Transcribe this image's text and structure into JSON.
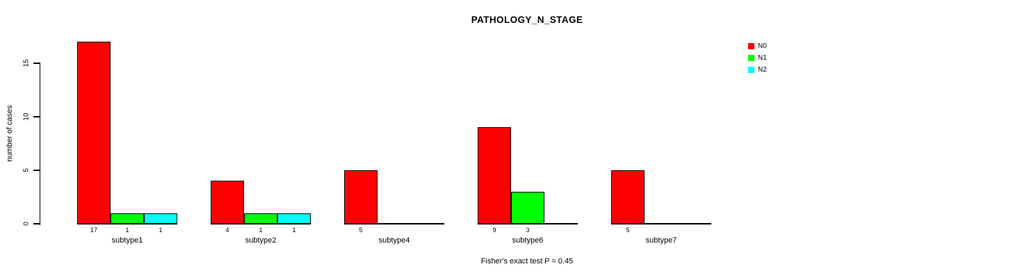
{
  "chart_data": {
    "type": "bar",
    "title": "PATHOLOGY_N_STAGE",
    "ylabel": "number of cases",
    "categories": [
      "subtype1",
      "subtype2",
      "subtype4",
      "subtype6",
      "subtype7"
    ],
    "series": [
      {
        "name": "N0",
        "color": "#ff0000",
        "values": [
          17,
          4,
          5,
          9,
          5
        ]
      },
      {
        "name": "N1",
        "color": "#00ff00",
        "values": [
          1,
          1,
          0,
          3,
          0
        ]
      },
      {
        "name": "N2",
        "color": "#00ffff",
        "values": [
          1,
          1,
          0,
          0,
          0
        ]
      }
    ],
    "yticks": [
      0,
      5,
      10,
      15
    ],
    "ylim": [
      0,
      17
    ],
    "grid": "off",
    "legend_position": "top-right",
    "bar_value_labels_shown": "nonzero-only",
    "annotation": "Fisher's exact test P = 0.45"
  },
  "colors": {
    "axis": "#000000",
    "background": "#ffffff",
    "N0": "#ff0000",
    "N1": "#00ff00",
    "N2": "#00ffff"
  }
}
